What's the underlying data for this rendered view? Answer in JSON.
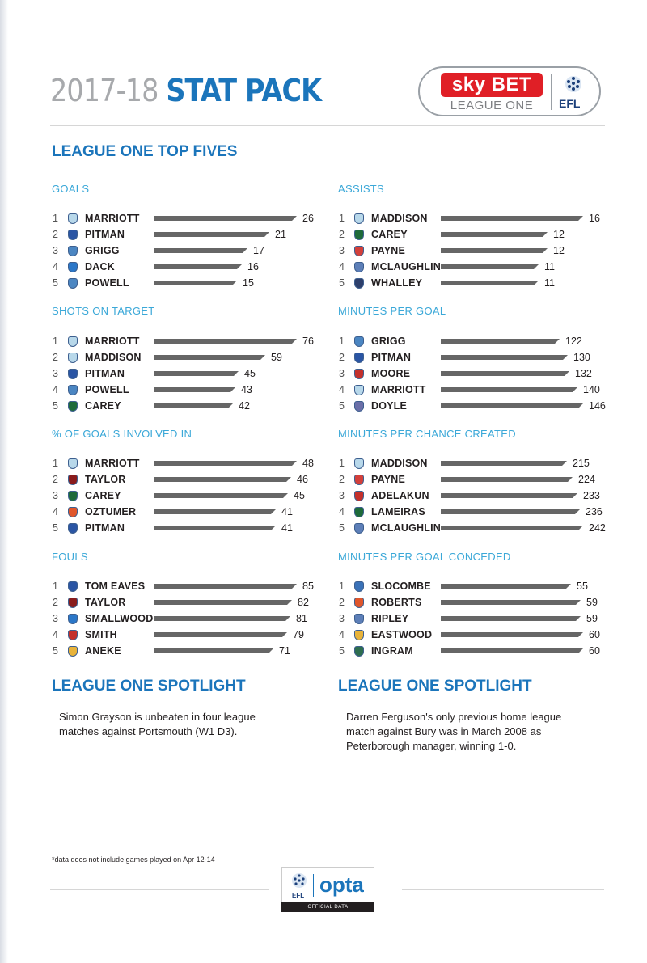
{
  "header": {
    "season": "2017-18",
    "title": "STAT PACK",
    "logo": {
      "sky": "sky",
      "bet": "BET",
      "league": "LEAGUE ONE",
      "efl": "EFL"
    }
  },
  "top_fives_title": "LEAGUE ONE TOP FIVES",
  "colors": {
    "accent": "#1b75bb",
    "subhead": "#3ba8d8",
    "bar": "#666666"
  },
  "blocks": [
    {
      "title": "GOALS",
      "max": 26,
      "rows": [
        {
          "rank": "1",
          "name": "MARRIOTT",
          "value": 26,
          "crest": "#b8d8ea"
        },
        {
          "rank": "2",
          "name": "PITMAN",
          "value": 21,
          "crest": "#2a55a4"
        },
        {
          "rank": "3",
          "name": "GRIGG",
          "value": 17,
          "crest": "#4b86c2"
        },
        {
          "rank": "4",
          "name": "DACK",
          "value": 16,
          "crest": "#2b77c8"
        },
        {
          "rank": "5",
          "name": "POWELL",
          "value": 15,
          "crest": "#4b86c2"
        }
      ]
    },
    {
      "title": "ASSISTS",
      "max": 16,
      "rows": [
        {
          "rank": "1",
          "name": "MADDISON",
          "value": 16,
          "crest": "#b8d8ea"
        },
        {
          "rank": "2",
          "name": "CAREY",
          "value": 12,
          "crest": "#1e6b3a"
        },
        {
          "rank": "3",
          "name": "PAYNE",
          "value": 12,
          "crest": "#d3403b"
        },
        {
          "rank": "4",
          "name": "MCLAUGHLIN",
          "value": 11,
          "crest": "#5d7fb8"
        },
        {
          "rank": "5",
          "name": "WHALLEY",
          "value": 11,
          "crest": "#2d3f6b"
        }
      ]
    },
    {
      "title": "SHOTS ON TARGET",
      "max": 76,
      "rows": [
        {
          "rank": "1",
          "name": "MARRIOTT",
          "value": 76,
          "crest": "#b8d8ea"
        },
        {
          "rank": "2",
          "name": "MADDISON",
          "value": 59,
          "crest": "#b8d8ea"
        },
        {
          "rank": "3",
          "name": "PITMAN",
          "value": 45,
          "crest": "#2a55a4"
        },
        {
          "rank": "4",
          "name": "POWELL",
          "value": 43,
          "crest": "#4b86c2"
        },
        {
          "rank": "5",
          "name": "CAREY",
          "value": 42,
          "crest": "#1e6b3a"
        }
      ]
    },
    {
      "title": "MINUTES PER GOAL",
      "max": 146,
      "rows": [
        {
          "rank": "1",
          "name": "GRIGG",
          "value": 122,
          "crest": "#4b86c2"
        },
        {
          "rank": "2",
          "name": "PITMAN",
          "value": 130,
          "crest": "#2a55a4"
        },
        {
          "rank": "3",
          "name": "MOORE",
          "value": 132,
          "crest": "#c4302b"
        },
        {
          "rank": "4",
          "name": "MARRIOTT",
          "value": 140,
          "crest": "#b8d8ea"
        },
        {
          "rank": "5",
          "name": "DOYLE",
          "value": 146,
          "crest": "#6b6fa8"
        }
      ]
    },
    {
      "title": "% OF GOALS INVOLVED IN",
      "max": 48,
      "rows": [
        {
          "rank": "1",
          "name": "MARRIOTT",
          "value": 48,
          "crest": "#b8d8ea"
        },
        {
          "rank": "2",
          "name": "TAYLOR",
          "value": 46,
          "crest": "#8a1c1c"
        },
        {
          "rank": "3",
          "name": "CAREY",
          "value": 45,
          "crest": "#1e6b3a"
        },
        {
          "rank": "4",
          "name": "OZTUMER",
          "value": 41,
          "crest": "#e0562b"
        },
        {
          "rank": "5",
          "name": "PITMAN",
          "value": 41,
          "crest": "#2a55a4"
        }
      ]
    },
    {
      "title": "MINUTES PER CHANCE CREATED",
      "max": 242,
      "rows": [
        {
          "rank": "1",
          "name": "MADDISON",
          "value": 215,
          "crest": "#b8d8ea"
        },
        {
          "rank": "2",
          "name": "PAYNE",
          "value": 224,
          "crest": "#d3403b"
        },
        {
          "rank": "3",
          "name": "ADELAKUN",
          "value": 233,
          "crest": "#c4302b"
        },
        {
          "rank": "4",
          "name": "LAMEIRAS",
          "value": 236,
          "crest": "#1e6b3a"
        },
        {
          "rank": "5",
          "name": "MCLAUGHLIN",
          "value": 242,
          "crest": "#5d7fb8"
        }
      ]
    },
    {
      "title": "FOULS",
      "max": 85,
      "rows": [
        {
          "rank": "1",
          "name": "TOM EAVES",
          "value": 85,
          "crest": "#2a55a4"
        },
        {
          "rank": "2",
          "name": "TAYLOR",
          "value": 82,
          "crest": "#8a1c1c"
        },
        {
          "rank": "3",
          "name": "SMALLWOOD",
          "value": 81,
          "crest": "#2b77c8"
        },
        {
          "rank": "4",
          "name": "SMITH",
          "value": 79,
          "crest": "#c4302b"
        },
        {
          "rank": "5",
          "name": "ANEKE",
          "value": 71,
          "crest": "#e8b33a"
        }
      ]
    },
    {
      "title": "MINUTES PER GOAL CONCEDED",
      "max": 60,
      "rows": [
        {
          "rank": "1",
          "name": "SLOCOMBE",
          "value": 55,
          "crest": "#3a72b8"
        },
        {
          "rank": "2",
          "name": "ROBERTS",
          "value": 59,
          "crest": "#e0562b"
        },
        {
          "rank": "3",
          "name": "RIPLEY",
          "value": 59,
          "crest": "#5d7fb8"
        },
        {
          "rank": "4",
          "name": "EASTWOOD",
          "value": 60,
          "crest": "#e8b33a"
        },
        {
          "rank": "5",
          "name": "INGRAM",
          "value": 60,
          "crest": "#2e6e4f"
        }
      ]
    }
  ],
  "spotlights": [
    {
      "title": "LEAGUE ONE SPOTLIGHT",
      "text": "Simon Grayson is unbeaten in four league matches against Portsmouth (W1 D3)."
    },
    {
      "title": "LEAGUE ONE SPOTLIGHT",
      "text": "Darren Ferguson's only previous home league match against Bury was in March 2008 as Peterborough manager, winning 1-0."
    }
  ],
  "footnote": "*data does not include games played on Apr 12-14",
  "opta": {
    "efl": "EFL",
    "word": "opta",
    "strip": "OFFICIAL DATA"
  }
}
